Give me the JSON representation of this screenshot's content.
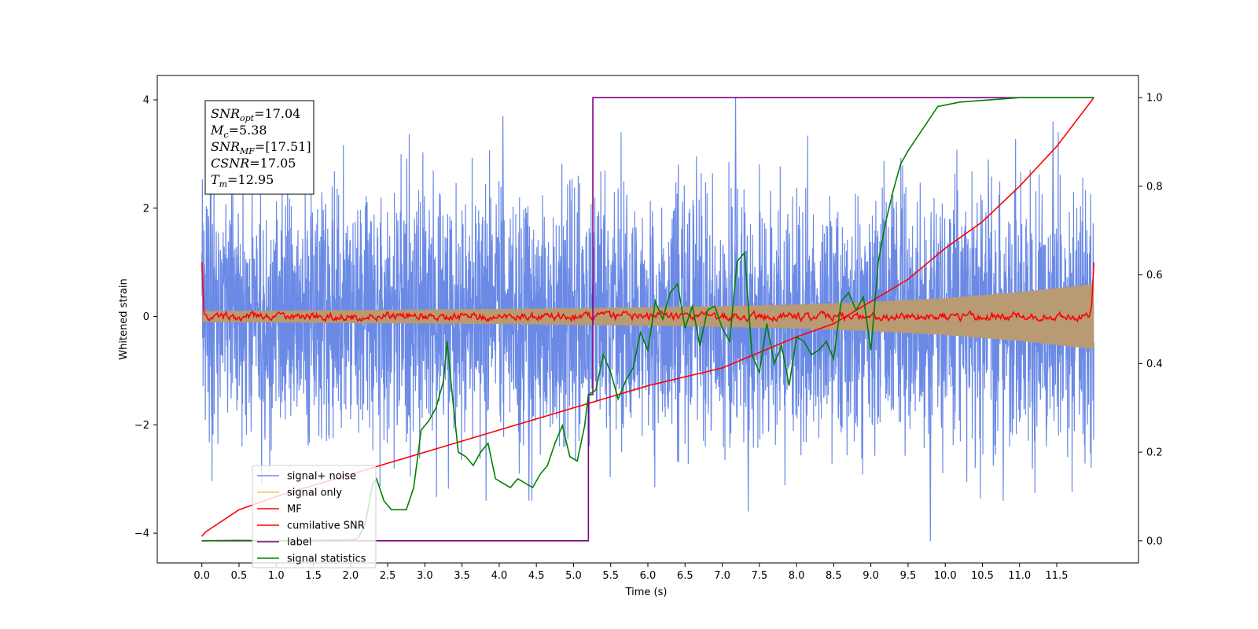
{
  "chart_data": {
    "type": "line",
    "xlabel": "Time (s)",
    "ylabel": "Whitened strain",
    "xlim": [
      -0.6,
      12.6
    ],
    "ylim": [
      -4.55,
      4.45
    ],
    "y2lim": [
      -0.05,
      1.05
    ],
    "x_ticks": [
      0.0,
      0.5,
      1.0,
      1.5,
      2.0,
      2.5,
      3.0,
      3.5,
      4.0,
      4.5,
      5.0,
      5.5,
      6.0,
      6.5,
      7.0,
      7.5,
      8.0,
      8.5,
      9.0,
      9.5,
      10.0,
      10.5,
      11.0,
      11.5
    ],
    "x_tick_labels": [
      "0.0",
      "0.5",
      "1.0",
      "1.5",
      "2.0",
      "2.5",
      "3.0",
      "3.5",
      "4.0",
      "4.5",
      "5.0",
      "5.5",
      "6.0",
      "6.5",
      "7.0",
      "7.5",
      "8.0",
      "8.5",
      "9.0",
      "9.5",
      "10.0",
      "10.5",
      "11.0",
      "11.5"
    ],
    "y_ticks": [
      -4,
      -2,
      0,
      2,
      4
    ],
    "y_tick_labels": [
      "−4",
      "−2",
      "0",
      "2",
      "4"
    ],
    "y2_ticks": [
      0.0,
      0.2,
      0.4,
      0.6,
      0.8,
      1.0
    ],
    "y2_tick_labels": [
      "0.0",
      "0.2",
      "0.4",
      "0.6",
      "0.8",
      "1.0"
    ],
    "grid": false,
    "legend_position": "lower-left",
    "series": [
      {
        "name": "signal+ noise",
        "color": "#6b8ae6",
        "axis": "left",
        "description_kind": "noise",
        "time_range": [
          0.0,
          12.0
        ],
        "amplitude_envelope": [
          -2.3,
          2.3
        ],
        "peak_examples": [
          [
            4.05,
            3.7
          ],
          [
            7.18,
            4.05
          ],
          [
            11.45,
            3.6
          ],
          [
            9.8,
            -4.15
          ],
          [
            4.4,
            -3.4
          ],
          [
            7.35,
            -3.6
          ]
        ]
      },
      {
        "name": "signal only",
        "color": "#f5c26b",
        "axis": "left",
        "time_range": [
          0.0,
          12.0
        ],
        "envelope": {
          "x": [
            0.0,
            2.0,
            4.0,
            6.0,
            8.0,
            9.0,
            10.0,
            11.0,
            12.0
          ],
          "y": [
            0.1,
            0.12,
            0.14,
            0.17,
            0.22,
            0.27,
            0.34,
            0.45,
            0.6
          ]
        }
      },
      {
        "name": "MF",
        "color": "#ff0000",
        "axis": "left",
        "time_range": [
          0.0,
          12.0
        ],
        "edge_value": 1.0,
        "baseline_amplitude": 0.07
      },
      {
        "name": "cumilative SNR",
        "color": "#ff0000",
        "axis": "right",
        "x": [
          0.0,
          0.05,
          0.5,
          1.0,
          2.0,
          3.0,
          4.0,
          5.0,
          6.0,
          7.0,
          8.0,
          8.5,
          9.0,
          9.5,
          10.0,
          10.5,
          11.0,
          11.5,
          12.0
        ],
        "y": [
          0.01,
          0.02,
          0.07,
          0.1,
          0.15,
          0.2,
          0.25,
          0.3,
          0.35,
          0.39,
          0.46,
          0.49,
          0.54,
          0.59,
          0.66,
          0.72,
          0.8,
          0.89,
          1.0
        ]
      },
      {
        "name": "label",
        "color": "#800080",
        "axis": "right",
        "x": [
          0.0,
          5.2,
          5.2,
          5.26,
          5.26,
          12.0
        ],
        "y": [
          0.0,
          0.0,
          0.33,
          0.33,
          1.0,
          1.0
        ]
      },
      {
        "name": "signal statistics",
        "color": "#008000",
        "axis": "right",
        "x": [
          0.0,
          0.5,
          1.0,
          1.5,
          2.0,
          2.1,
          2.2,
          2.3,
          2.35,
          2.45,
          2.55,
          2.65,
          2.75,
          2.85,
          2.95,
          3.05,
          3.15,
          3.25,
          3.3,
          3.35,
          3.45,
          3.55,
          3.65,
          3.75,
          3.85,
          3.95,
          4.05,
          4.15,
          4.25,
          4.35,
          4.45,
          4.55,
          4.65,
          4.75,
          4.85,
          4.95,
          5.05,
          5.15,
          5.2,
          5.3,
          5.4,
          5.5,
          5.6,
          5.7,
          5.8,
          5.9,
          6.0,
          6.1,
          6.2,
          6.3,
          6.4,
          6.5,
          6.6,
          6.7,
          6.8,
          6.9,
          7.0,
          7.1,
          7.2,
          7.3,
          7.4,
          7.5,
          7.6,
          7.7,
          7.8,
          7.9,
          8.0,
          8.1,
          8.2,
          8.3,
          8.4,
          8.5,
          8.6,
          8.7,
          8.8,
          8.9,
          9.0,
          9.1,
          9.2,
          9.3,
          9.4,
          9.5,
          9.7,
          9.9,
          10.2,
          11.0,
          12.0
        ],
        "y": [
          0.0,
          0.001,
          0.0,
          0.001,
          0.002,
          0.005,
          0.04,
          0.13,
          0.14,
          0.09,
          0.07,
          0.07,
          0.07,
          0.12,
          0.25,
          0.27,
          0.3,
          0.36,
          0.45,
          0.36,
          0.2,
          0.19,
          0.17,
          0.2,
          0.22,
          0.14,
          0.13,
          0.12,
          0.14,
          0.13,
          0.12,
          0.15,
          0.17,
          0.22,
          0.26,
          0.19,
          0.18,
          0.26,
          0.33,
          0.34,
          0.42,
          0.38,
          0.32,
          0.36,
          0.39,
          0.47,
          0.43,
          0.54,
          0.5,
          0.56,
          0.58,
          0.48,
          0.53,
          0.44,
          0.52,
          0.53,
          0.48,
          0.45,
          0.63,
          0.65,
          0.42,
          0.38,
          0.49,
          0.4,
          0.44,
          0.35,
          0.46,
          0.45,
          0.42,
          0.43,
          0.45,
          0.41,
          0.54,
          0.56,
          0.52,
          0.55,
          0.43,
          0.63,
          0.72,
          0.79,
          0.85,
          0.88,
          0.93,
          0.98,
          0.99,
          1.0,
          1.0
        ]
      }
    ],
    "annotation": {
      "lines": [
        {
          "base": "SNR",
          "sub": "opt",
          "value": "=17.04"
        },
        {
          "base": "M",
          "sub": "c",
          "value": "=5.38"
        },
        {
          "base": "SNR",
          "sub": "MF",
          "value": "=[17.51]"
        },
        {
          "base": "CSNR",
          "sub": "",
          "value": "=17.05"
        },
        {
          "base": "T",
          "sub": "m",
          "value": "=12.95"
        }
      ]
    }
  }
}
